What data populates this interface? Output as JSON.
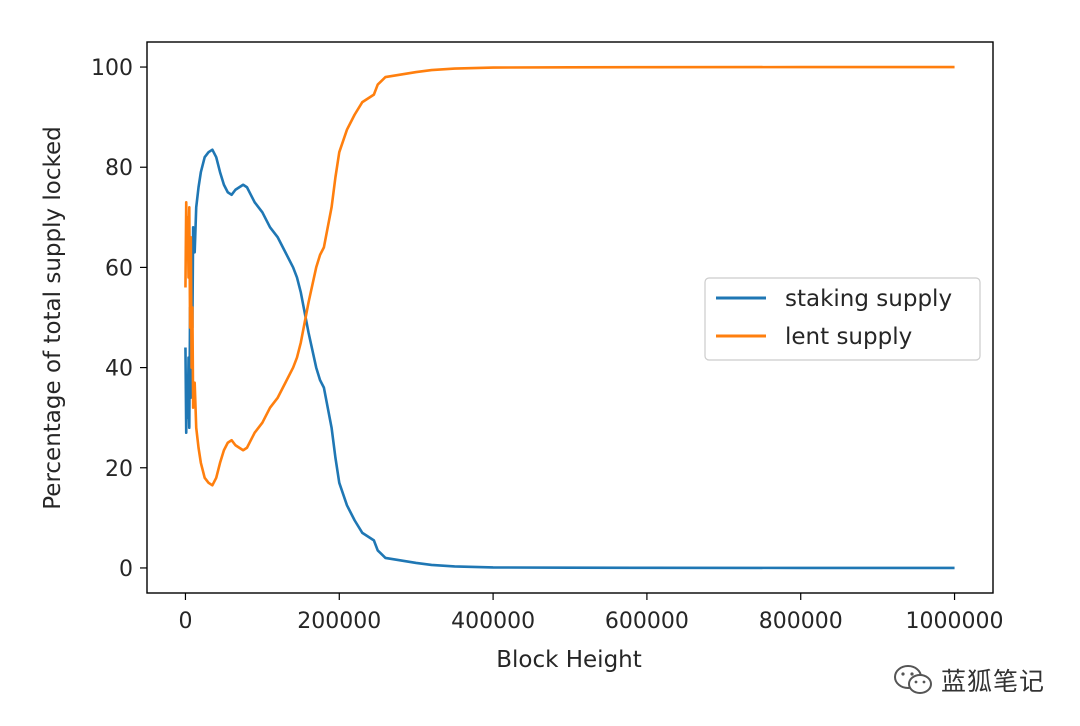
{
  "chart_data": {
    "type": "line",
    "xlabel": "Block Height",
    "ylabel": "Percentage of total supply locked",
    "xlim": [
      -50000,
      1050000
    ],
    "ylim": [
      -5,
      105
    ],
    "xticks": [
      0,
      200000,
      400000,
      600000,
      800000,
      1000000
    ],
    "xtick_labels": [
      "0",
      "200000",
      "400000",
      "600000",
      "800000",
      "1000000"
    ],
    "yticks": [
      0,
      20,
      40,
      60,
      80,
      100
    ],
    "ytick_labels": [
      "0",
      "20",
      "40",
      "60",
      "80",
      "100"
    ],
    "grid": false,
    "legend_position": "center-right",
    "series": [
      {
        "name": "staking supply",
        "color": "#1f77b4",
        "points": [
          [
            0,
            44
          ],
          [
            1000,
            27
          ],
          [
            2000,
            36
          ],
          [
            3000,
            30
          ],
          [
            4000,
            42
          ],
          [
            5000,
            28
          ],
          [
            6000,
            52
          ],
          [
            7000,
            34
          ],
          [
            8000,
            60
          ],
          [
            9000,
            48
          ],
          [
            10000,
            68
          ],
          [
            12000,
            63
          ],
          [
            14000,
            72
          ],
          [
            17000,
            76
          ],
          [
            20000,
            79
          ],
          [
            25000,
            82
          ],
          [
            30000,
            83
          ],
          [
            35000,
            83.5
          ],
          [
            40000,
            82
          ],
          [
            45000,
            79
          ],
          [
            50000,
            76.5
          ],
          [
            55000,
            75
          ],
          [
            60000,
            74.5
          ],
          [
            65000,
            75.5
          ],
          [
            70000,
            76
          ],
          [
            75000,
            76.5
          ],
          [
            80000,
            76
          ],
          [
            85000,
            74.5
          ],
          [
            90000,
            73
          ],
          [
            95000,
            72
          ],
          [
            100000,
            71
          ],
          [
            110000,
            68
          ],
          [
            120000,
            66
          ],
          [
            130000,
            63
          ],
          [
            140000,
            60
          ],
          [
            145000,
            58
          ],
          [
            150000,
            55
          ],
          [
            160000,
            47
          ],
          [
            170000,
            40
          ],
          [
            175000,
            37.5
          ],
          [
            180000,
            36
          ],
          [
            190000,
            28
          ],
          [
            195000,
            22
          ],
          [
            200000,
            17
          ],
          [
            210000,
            12.5
          ],
          [
            220000,
            9.5
          ],
          [
            230000,
            7
          ],
          [
            240000,
            6
          ],
          [
            245000,
            5.5
          ],
          [
            250000,
            3.5
          ],
          [
            260000,
            2
          ],
          [
            280000,
            1.5
          ],
          [
            300000,
            1
          ],
          [
            320000,
            0.6
          ],
          [
            350000,
            0.3
          ],
          [
            400000,
            0.1
          ],
          [
            500000,
            0.05
          ],
          [
            600000,
            0.02
          ],
          [
            800000,
            0.01
          ],
          [
            1000000,
            0
          ]
        ]
      },
      {
        "name": "lent supply",
        "color": "#ff7f0e",
        "points": [
          [
            0,
            56
          ],
          [
            1000,
            73
          ],
          [
            2000,
            64
          ],
          [
            3000,
            70
          ],
          [
            4000,
            58
          ],
          [
            5000,
            72
          ],
          [
            6000,
            48
          ],
          [
            7000,
            66
          ],
          [
            8000,
            40
          ],
          [
            9000,
            52
          ],
          [
            10000,
            32
          ],
          [
            12000,
            37
          ],
          [
            14000,
            28
          ],
          [
            17000,
            24
          ],
          [
            20000,
            21
          ],
          [
            25000,
            18
          ],
          [
            30000,
            17
          ],
          [
            35000,
            16.5
          ],
          [
            40000,
            18
          ],
          [
            45000,
            21
          ],
          [
            50000,
            23.5
          ],
          [
            55000,
            25
          ],
          [
            60000,
            25.5
          ],
          [
            65000,
            24.5
          ],
          [
            70000,
            24
          ],
          [
            75000,
            23.5
          ],
          [
            80000,
            24
          ],
          [
            85000,
            25.5
          ],
          [
            90000,
            27
          ],
          [
            95000,
            28
          ],
          [
            100000,
            29
          ],
          [
            110000,
            32
          ],
          [
            120000,
            34
          ],
          [
            130000,
            37
          ],
          [
            140000,
            40
          ],
          [
            145000,
            42
          ],
          [
            150000,
            45
          ],
          [
            160000,
            53
          ],
          [
            170000,
            60
          ],
          [
            175000,
            62.5
          ],
          [
            180000,
            64
          ],
          [
            190000,
            72
          ],
          [
            195000,
            78
          ],
          [
            200000,
            83
          ],
          [
            210000,
            87.5
          ],
          [
            220000,
            90.5
          ],
          [
            230000,
            93
          ],
          [
            240000,
            94
          ],
          [
            245000,
            94.5
          ],
          [
            250000,
            96.5
          ],
          [
            260000,
            98
          ],
          [
            280000,
            98.5
          ],
          [
            300000,
            99
          ],
          [
            320000,
            99.4
          ],
          [
            350000,
            99.7
          ],
          [
            400000,
            99.9
          ],
          [
            500000,
            99.95
          ],
          [
            600000,
            99.98
          ],
          [
            800000,
            99.99
          ],
          [
            1000000,
            100
          ]
        ]
      }
    ]
  },
  "watermark": {
    "text": "蓝狐笔记",
    "icon": "wechat-icon"
  }
}
